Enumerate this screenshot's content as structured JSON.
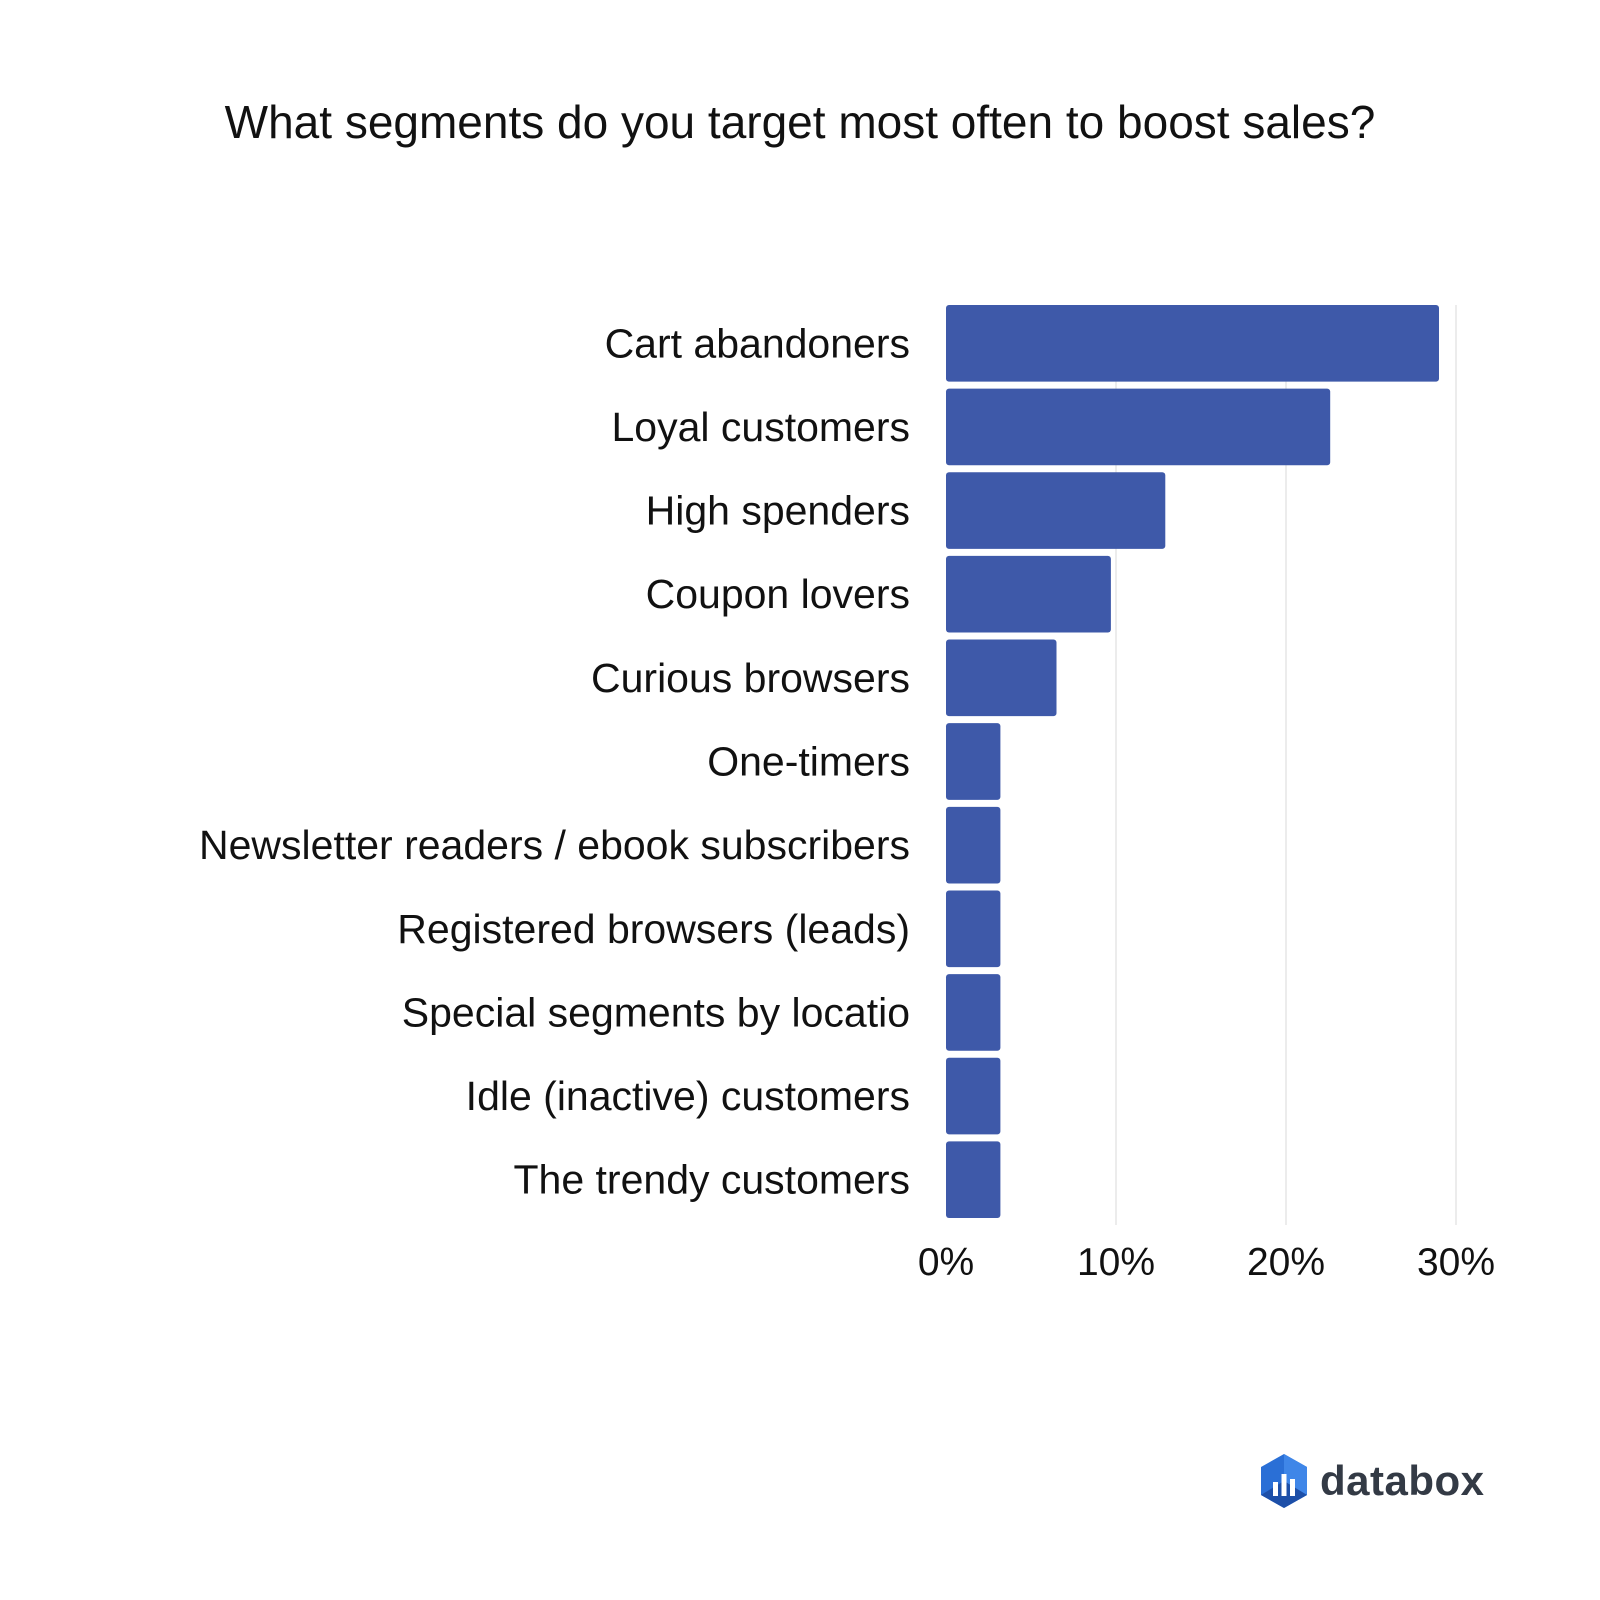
{
  "chart_data": {
    "type": "bar",
    "orientation": "horizontal",
    "title": "What segments do you target most often to boost sales?",
    "categories": [
      "Cart abandoners",
      "Loyal customers",
      "High spenders",
      "Coupon lovers",
      "Curious browsers",
      "One-timers",
      "Newsletter readers / ebook subscribers",
      "Registered browsers (leads)",
      "Special segments by locatio",
      "Idle (inactive) customers",
      "The trendy customers"
    ],
    "values": [
      29.0,
      22.6,
      12.9,
      9.7,
      6.5,
      3.2,
      3.2,
      3.2,
      3.2,
      3.2,
      3.2
    ],
    "unit": "%",
    "xlim": [
      0,
      30
    ],
    "xticks": [
      0,
      10,
      20,
      30
    ],
    "xtick_labels": [
      "0%",
      "10%",
      "20%",
      "30%"
    ],
    "grid": true,
    "bar_color": "#3e59a9",
    "grid_color": "#e6e6e6"
  },
  "brand": {
    "name": "databox",
    "logo_icon": "databox-logo-icon",
    "logo_colors": [
      "#2a6fd6",
      "#1d4fa8",
      "#3f86e8"
    ]
  }
}
